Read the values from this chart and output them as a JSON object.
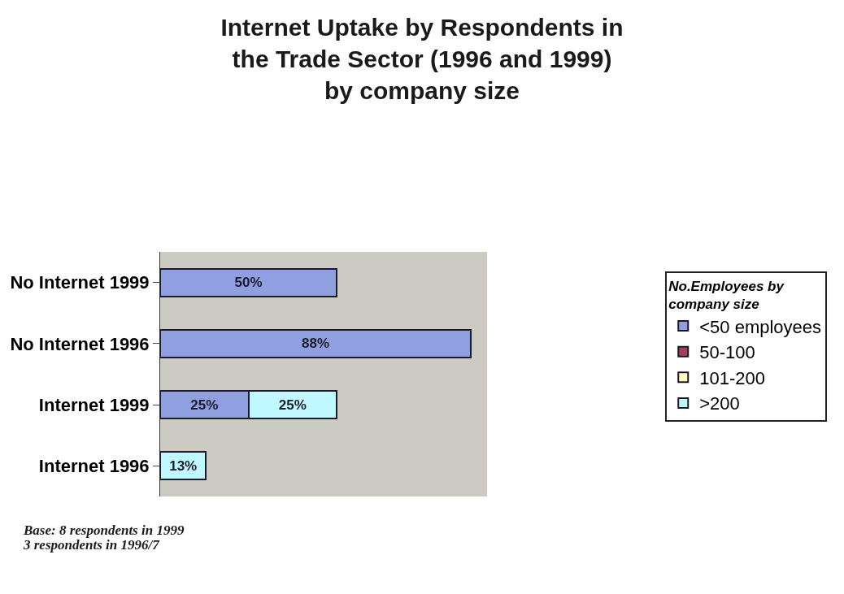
{
  "chart_data": {
    "type": "bar",
    "orientation": "horizontal",
    "stacked": true,
    "title": "Internet Uptake by Respondents in the Trade Sector (1996 and 1999)  by company size",
    "categories": [
      "No Internet 1999",
      "No Internet 1996",
      "Internet 1999",
      "Internet 1996"
    ],
    "series": [
      {
        "name": "<50 employees",
        "color": "#8f9fe0",
        "values": [
          50,
          88,
          25,
          null
        ],
        "value_labels": [
          "50%",
          "88%",
          "25%",
          null
        ]
      },
      {
        "name": "50-100",
        "color": "#a0405a",
        "values": [
          null,
          null,
          null,
          null
        ],
        "value_labels": [
          null,
          null,
          null,
          null
        ]
      },
      {
        "name": "101-200",
        "color": "#ffffc0",
        "values": [
          null,
          null,
          null,
          null
        ],
        "value_labels": [
          null,
          null,
          null,
          null
        ]
      },
      {
        "name": ">200",
        "color": "#c0f8ff",
        "values": [
          null,
          null,
          25,
          13
        ],
        "value_labels": [
          null,
          null,
          "25%",
          "13%"
        ]
      }
    ],
    "legend_title": "No.Employees by company size",
    "legend": "right",
    "annotations": [
      "Base: 8 respondents in 1999",
      "3 respondents in 1996/7"
    ]
  }
}
